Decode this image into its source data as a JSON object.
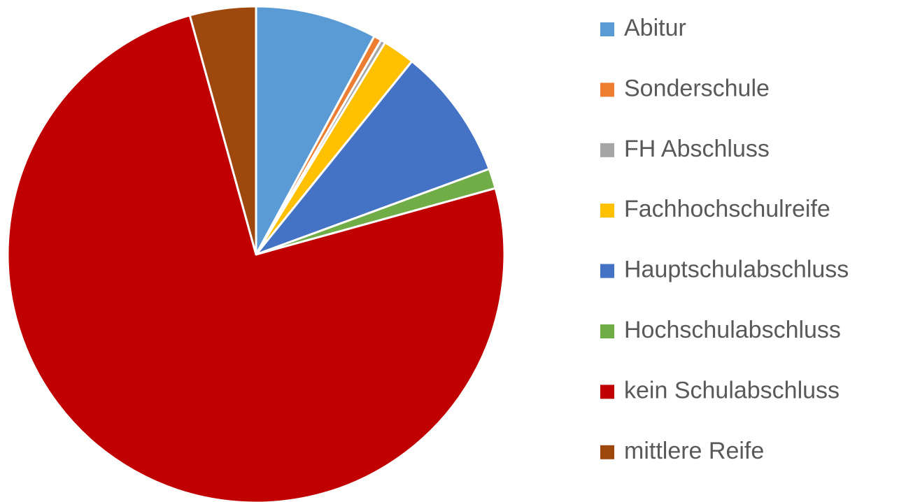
{
  "chart_data": {
    "type": "pie",
    "categories": [
      "Abitur",
      "Sonderschule",
      "FH Abschluss",
      "Fachhochschulreife",
      "Hauptschulabschluss",
      "Hochschulabschluss",
      "kein Schulabschluss",
      "mittlere Reife"
    ],
    "values": [
      7.9,
      0.5,
      0.3,
      2.1,
      8.6,
      1.3,
      75.0,
      4.3
    ],
    "colors": [
      "#5b9bd5",
      "#ed7d31",
      "#a5a5a5",
      "#ffc000",
      "#4472c4",
      "#70ad47",
      "#c00000",
      "#9e480e"
    ],
    "legend": "right"
  }
}
